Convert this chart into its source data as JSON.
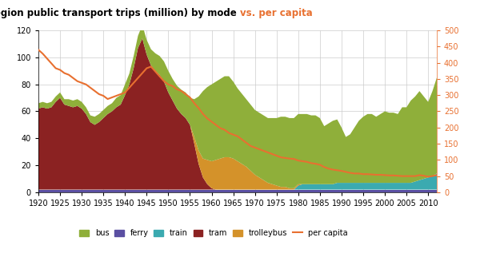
{
  "title_black": "Auckland region public transport trips (million) by mode ",
  "title_orange": "vs. per capita",
  "years": [
    1920,
    1921,
    1922,
    1923,
    1924,
    1925,
    1926,
    1927,
    1928,
    1929,
    1930,
    1931,
    1932,
    1933,
    1934,
    1935,
    1936,
    1937,
    1938,
    1939,
    1940,
    1941,
    1942,
    1943,
    1944,
    1945,
    1946,
    1947,
    1948,
    1949,
    1950,
    1951,
    1952,
    1953,
    1954,
    1955,
    1956,
    1957,
    1958,
    1959,
    1960,
    1961,
    1962,
    1963,
    1964,
    1965,
    1966,
    1967,
    1968,
    1969,
    1970,
    1971,
    1972,
    1973,
    1974,
    1975,
    1976,
    1977,
    1978,
    1979,
    1980,
    1981,
    1982,
    1983,
    1984,
    1985,
    1986,
    1987,
    1988,
    1989,
    1990,
    1991,
    1992,
    1993,
    1994,
    1995,
    1996,
    1997,
    1998,
    1999,
    2000,
    2001,
    2002,
    2003,
    2004,
    2005,
    2006,
    2007,
    2008,
    2009,
    2010,
    2011,
    2012
  ],
  "ferry": [
    2,
    2,
    2,
    2,
    2,
    2,
    2,
    2,
    2,
    2,
    2,
    2,
    2,
    2,
    2,
    2,
    2,
    2,
    2,
    2,
    2,
    2,
    2,
    2,
    2,
    2,
    2,
    2,
    2,
    2,
    2,
    2,
    2,
    2,
    2,
    2,
    2,
    2,
    2,
    2,
    2,
    2,
    2,
    2,
    2,
    2,
    2,
    2,
    2,
    2,
    2,
    2,
    2,
    2,
    2,
    2,
    2,
    2,
    2,
    2,
    2,
    2,
    2,
    2,
    2,
    2,
    2,
    2,
    2,
    2,
    2,
    2,
    2,
    2,
    2,
    2,
    2,
    2,
    2,
    2,
    2,
    2,
    2,
    2,
    2,
    2,
    2,
    2,
    2,
    2,
    2,
    2,
    2
  ],
  "train": [
    0,
    0,
    0,
    0,
    0,
    0,
    0,
    0,
    0,
    0,
    0,
    0,
    0,
    0,
    0,
    0,
    0,
    0,
    0,
    0,
    0,
    0,
    0,
    0,
    0,
    0,
    0,
    0,
    0,
    0,
    0,
    0,
    0,
    0,
    0,
    0,
    0,
    0,
    0,
    0,
    0,
    0,
    0,
    0,
    0,
    0,
    0,
    0,
    0,
    0,
    0,
    0,
    0,
    0,
    0,
    0,
    0,
    0,
    0,
    0,
    3,
    4,
    4,
    4,
    4,
    4,
    4,
    4,
    4,
    5,
    5,
    5,
    5,
    5,
    5,
    5,
    5,
    5,
    5,
    5,
    5,
    5,
    5,
    5,
    5,
    5,
    5,
    6,
    7,
    8,
    9,
    10,
    12
  ],
  "tram": [
    60,
    61,
    60,
    61,
    65,
    68,
    63,
    62,
    61,
    62,
    60,
    56,
    50,
    48,
    50,
    53,
    56,
    58,
    61,
    63,
    70,
    78,
    90,
    105,
    112,
    100,
    92,
    88,
    85,
    80,
    72,
    66,
    60,
    56,
    53,
    48,
    34,
    19,
    9,
    4,
    1,
    0,
    0,
    0,
    0,
    0,
    0,
    0,
    0,
    0,
    0,
    0,
    0,
    0,
    0,
    0,
    0,
    0,
    0,
    0,
    0,
    0,
    0,
    0,
    0,
    0,
    0,
    0,
    0,
    0,
    0,
    0,
    0,
    0,
    0,
    0,
    0,
    0,
    0,
    0,
    0,
    0,
    0,
    0,
    0,
    0,
    0,
    0,
    0,
    0,
    0,
    0,
    0
  ],
  "trolleybus": [
    0,
    0,
    0,
    0,
    0,
    0,
    0,
    0,
    0,
    0,
    0,
    0,
    0,
    0,
    0,
    0,
    0,
    0,
    0,
    0,
    0,
    0,
    0,
    0,
    0,
    0,
    0,
    0,
    0,
    0,
    0,
    0,
    0,
    0,
    0,
    0,
    5,
    10,
    14,
    18,
    20,
    22,
    23,
    24,
    24,
    23,
    21,
    19,
    17,
    14,
    11,
    9,
    7,
    5,
    4,
    3,
    2,
    2,
    1,
    1,
    1,
    0,
    0,
    0,
    0,
    0,
    0,
    0,
    0,
    0,
    0,
    0,
    0,
    0,
    0,
    0,
    0,
    0,
    0,
    0,
    0,
    0,
    0,
    0,
    0,
    0,
    0,
    0,
    0,
    0,
    0,
    0,
    0
  ],
  "bus": [
    4,
    4,
    4,
    4,
    4,
    4,
    4,
    5,
    5,
    5,
    5,
    5,
    5,
    6,
    6,
    6,
    6,
    6,
    7,
    7,
    8,
    8,
    9,
    9,
    10,
    11,
    12,
    13,
    14,
    15,
    16,
    16,
    17,
    18,
    19,
    20,
    28,
    40,
    50,
    54,
    57,
    58,
    59,
    60,
    60,
    57,
    54,
    52,
    50,
    49,
    48,
    48,
    48,
    48,
    49,
    50,
    52,
    52,
    52,
    52,
    52,
    52,
    52,
    51,
    51,
    49,
    43,
    45,
    47,
    47,
    41,
    34,
    36,
    41,
    46,
    49,
    51,
    51,
    49,
    51,
    53,
    52,
    52,
    51,
    56,
    56,
    61,
    63,
    66,
    61,
    56,
    63,
    71
  ],
  "per_capita": [
    440,
    428,
    413,
    398,
    383,
    378,
    368,
    363,
    353,
    343,
    338,
    333,
    323,
    313,
    303,
    298,
    288,
    293,
    298,
    303,
    308,
    323,
    338,
    353,
    368,
    383,
    388,
    373,
    358,
    343,
    333,
    328,
    318,
    313,
    303,
    293,
    275,
    260,
    242,
    228,
    218,
    208,
    198,
    193,
    183,
    178,
    173,
    163,
    153,
    143,
    138,
    133,
    128,
    123,
    118,
    113,
    108,
    106,
    104,
    103,
    98,
    96,
    94,
    90,
    88,
    85,
    78,
    73,
    70,
    68,
    66,
    63,
    60,
    58,
    58,
    56,
    56,
    55,
    54,
    54,
    53,
    52,
    52,
    51,
    50,
    50,
    50,
    50,
    53,
    51,
    48,
    50,
    53
  ],
  "colors": {
    "tram": "#8B2222",
    "trolleybus": "#D4922A",
    "bus": "#8FAF3A",
    "train": "#3BAAB0",
    "ferry": "#5A4FA2",
    "per_capita": "#E87030"
  },
  "ylim_left": [
    0,
    120
  ],
  "ylim_right": [
    0,
    500
  ],
  "yticks_left": [
    0,
    20,
    40,
    60,
    80,
    100,
    120
  ],
  "yticks_right": [
    0,
    50,
    100,
    150,
    200,
    250,
    300,
    350,
    400,
    450,
    500
  ],
  "xticks": [
    1920,
    1925,
    1930,
    1935,
    1940,
    1945,
    1950,
    1955,
    1960,
    1965,
    1970,
    1975,
    1980,
    1985,
    1990,
    1995,
    2000,
    2005,
    2010
  ],
  "background_color": "#FFFFFF",
  "grid_color": "#CCCCCC"
}
